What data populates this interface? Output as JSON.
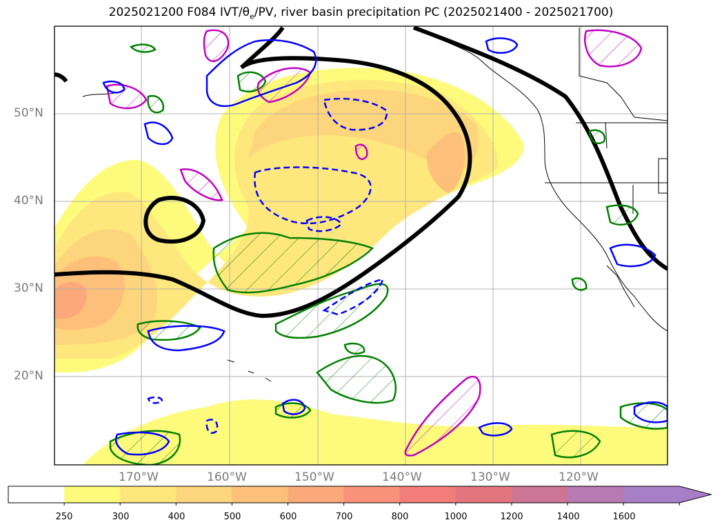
{
  "title": {
    "prefix": "2025021200 F084 IVT/",
    "theta": "θ",
    "theta_sub": "e",
    "suffix": "/PV, river basin precipitation PC (2025021400 - 2025021700)"
  },
  "lat_labels": [
    "50°N",
    "40°N",
    "30°N",
    "20°N"
  ],
  "lon_labels": [
    "170°W",
    "160°W",
    "150°W",
    "140°W",
    "130°W",
    "120°W"
  ],
  "colorbar": {
    "ticks": [
      "250",
      "300",
      "400",
      "500",
      "600",
      "700",
      "800",
      "1000",
      "1200",
      "1400",
      "1600"
    ],
    "colors": [
      "#ffffff",
      "#fefb7c",
      "#fee77d",
      "#fdd57c",
      "#fcc07a",
      "#fba97a",
      "#f9927a",
      "#f27d7b",
      "#e3757e",
      "#cc7595",
      "#b87ab2",
      "#a77fc6"
    ]
  },
  "colors": {
    "ivt_250": "#fefb7c",
    "ivt_300": "#fee77d",
    "ivt_400": "#fdd57c",
    "ivt_500": "#fcc07a",
    "ivt_600": "#fba97a",
    "theta_contour": "#000000",
    "pv_positive": "#0000ff",
    "pv_magenta": "#c000c0",
    "precip_green": "#008000"
  }
}
